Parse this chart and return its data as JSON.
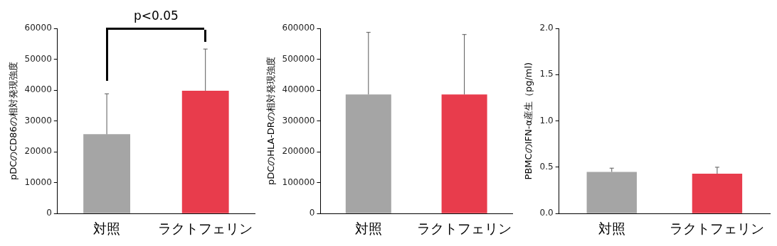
{
  "chart_data": [
    {
      "type": "bar",
      "categories": [
        "対照",
        "ラクトフェリン"
      ],
      "values": [
        25700,
        39800
      ],
      "errors": [
        13100,
        13500
      ],
      "colors": [
        "#a5a5a5",
        "#e83c4c"
      ],
      "ylabel": "pDCのCD86の相対発現強度",
      "ylim": [
        0,
        60000
      ],
      "yticks": [
        0,
        10000,
        20000,
        30000,
        40000,
        50000,
        60000
      ],
      "annotations": [
        "p<0.05"
      ]
    },
    {
      "type": "bar",
      "categories": [
        "対照",
        "ラクトフェリン"
      ],
      "values": [
        386000,
        386000
      ],
      "errors": [
        201000,
        194000
      ],
      "colors": [
        "#a5a5a5",
        "#e83c4c"
      ],
      "ylabel": "pDCのHLA-DRの相対発現強度",
      "ylim": [
        0,
        600000
      ],
      "yticks": [
        0,
        100000,
        200000,
        300000,
        400000,
        500000,
        600000
      ]
    },
    {
      "type": "bar",
      "categories": [
        "対照",
        "ラクトフェリン"
      ],
      "values": [
        0.45,
        0.43
      ],
      "errors": [
        0.04,
        0.07
      ],
      "colors": [
        "#a5a5a5",
        "#e83c4c"
      ],
      "ylabel": "PBMCのIFN-α産生（pg/ml)",
      "ylim": [
        0,
        2.0
      ],
      "yticks": [
        {
          "value": 0,
          "label": "0.0"
        },
        0.5,
        {
          "value": 1,
          "label": "1.0"
        },
        1.5,
        {
          "value": 2,
          "label": "2.0"
        }
      ]
    }
  ]
}
